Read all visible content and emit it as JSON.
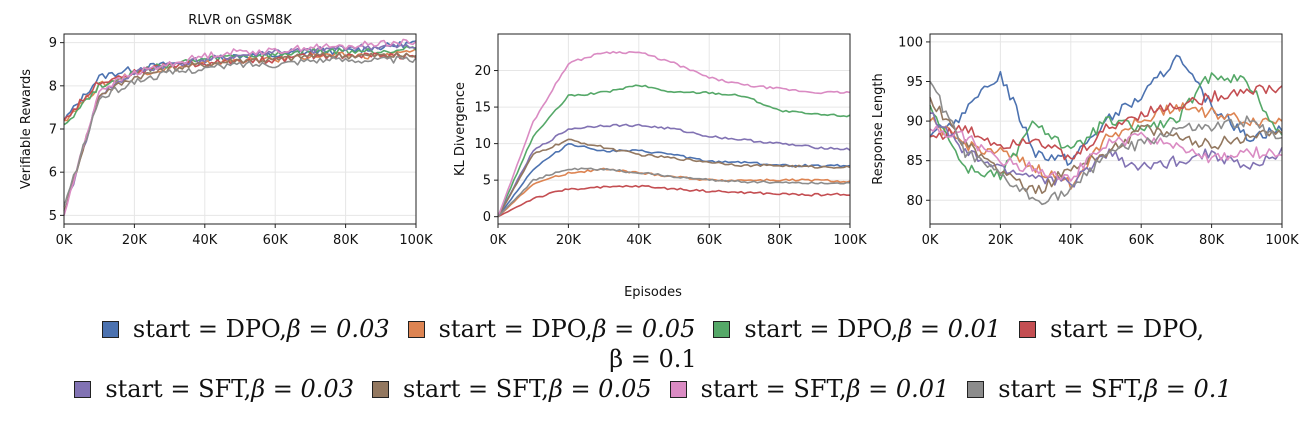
{
  "chart_data": [
    {
      "type": "line",
      "title": "RLVR on GSM8K",
      "xlabel": "",
      "ylabel": "Verifiable Rewards",
      "xlim": [
        0,
        100000
      ],
      "ylim": [
        4.8,
        9.2
      ],
      "xticks": [
        0,
        20000,
        40000,
        60000,
        80000,
        100000
      ],
      "xtick_labels": [
        "0K",
        "20K",
        "40K",
        "60K",
        "80K",
        "100K"
      ],
      "yticks": [
        5,
        6,
        7,
        8,
        9
      ],
      "ytick_labels": [
        "5",
        "6",
        "7",
        "8",
        "9"
      ],
      "grid": true,
      "x": [
        0,
        10000,
        20000,
        30000,
        40000,
        50000,
        60000,
        70000,
        80000,
        90000,
        100000
      ],
      "series": [
        {
          "color": "#4c72b0",
          "values": [
            7.2,
            8.2,
            8.4,
            8.5,
            8.6,
            8.7,
            8.7,
            8.8,
            8.8,
            8.9,
            9.0
          ]
        },
        {
          "color": "#dd8452",
          "values": [
            7.2,
            8.0,
            8.3,
            8.4,
            8.5,
            8.6,
            8.6,
            8.7,
            8.7,
            8.7,
            8.8
          ]
        },
        {
          "color": "#55a868",
          "values": [
            7.1,
            8.0,
            8.3,
            8.5,
            8.6,
            8.7,
            8.7,
            8.8,
            8.8,
            8.8,
            8.9
          ]
        },
        {
          "color": "#c44e52",
          "values": [
            7.2,
            8.1,
            8.3,
            8.5,
            8.5,
            8.6,
            8.6,
            8.7,
            8.7,
            8.7,
            8.7
          ]
        },
        {
          "color": "#8172b3",
          "values": [
            5.0,
            7.8,
            8.3,
            8.5,
            8.6,
            8.7,
            8.8,
            8.8,
            8.9,
            8.9,
            8.9
          ]
        },
        {
          "color": "#937860",
          "values": [
            5.1,
            7.8,
            8.2,
            8.4,
            8.5,
            8.6,
            8.6,
            8.7,
            8.7,
            8.7,
            8.7
          ]
        },
        {
          "color": "#da8bc3",
          "values": [
            5.0,
            7.9,
            8.3,
            8.5,
            8.7,
            8.8,
            8.8,
            8.9,
            8.9,
            9.0,
            9.0
          ]
        },
        {
          "color": "#8c8c8c",
          "values": [
            5.2,
            7.7,
            8.1,
            8.3,
            8.4,
            8.5,
            8.5,
            8.6,
            8.6,
            8.6,
            8.6
          ]
        }
      ]
    },
    {
      "type": "line",
      "title": "",
      "xlabel": "",
      "ylabel": "KL Divergence",
      "xlim": [
        0,
        100000
      ],
      "ylim": [
        -1,
        25
      ],
      "xticks": [
        0,
        20000,
        40000,
        60000,
        80000,
        100000
      ],
      "xtick_labels": [
        "0K",
        "20K",
        "40K",
        "60K",
        "80K",
        "100K"
      ],
      "yticks": [
        0,
        5,
        10,
        15,
        20
      ],
      "ytick_labels": [
        "0",
        "5",
        "10",
        "15",
        "20"
      ],
      "grid": true,
      "x": [
        0,
        10000,
        20000,
        30000,
        40000,
        50000,
        60000,
        70000,
        80000,
        90000,
        100000
      ],
      "series": [
        {
          "color": "#4c72b0",
          "values": [
            0,
            6.5,
            10.0,
            9.0,
            9.0,
            8.5,
            7.5,
            7.5,
            7.0,
            7.0,
            7.0
          ]
        },
        {
          "color": "#dd8452",
          "values": [
            0,
            4.5,
            6.0,
            6.5,
            6.0,
            5.5,
            5.0,
            5.0,
            5.0,
            5.0,
            4.8
          ]
        },
        {
          "color": "#55a868",
          "values": [
            0,
            11.0,
            16.5,
            17.0,
            18.0,
            17.0,
            17.0,
            16.5,
            14.5,
            14.0,
            13.8
          ]
        },
        {
          "color": "#c44e52",
          "values": [
            0,
            2.5,
            3.8,
            4.0,
            4.2,
            3.8,
            3.5,
            3.3,
            3.1,
            3.0,
            3.1
          ]
        },
        {
          "color": "#8172b3",
          "values": [
            0,
            9.0,
            12.0,
            12.5,
            12.5,
            12.0,
            11.0,
            10.5,
            10.0,
            9.5,
            9.2
          ]
        },
        {
          "color": "#937860",
          "values": [
            0,
            8.5,
            10.5,
            9.5,
            8.5,
            8.0,
            7.5,
            7.0,
            7.0,
            6.8,
            6.8
          ]
        },
        {
          "color": "#da8bc3",
          "values": [
            0,
            13.0,
            21.0,
            22.5,
            22.5,
            21.0,
            19.0,
            18.0,
            17.5,
            17.0,
            17.0
          ]
        },
        {
          "color": "#8c8c8c",
          "values": [
            0,
            5.0,
            6.5,
            6.5,
            6.0,
            5.5,
            5.0,
            4.8,
            4.7,
            4.6,
            4.6
          ]
        }
      ]
    },
    {
      "type": "line",
      "title": "",
      "xlabel": "",
      "ylabel": "Response Length",
      "xlim": [
        0,
        100000
      ],
      "ylim": [
        77,
        101
      ],
      "xticks": [
        0,
        20000,
        40000,
        60000,
        80000,
        100000
      ],
      "xtick_labels": [
        "0K",
        "20K",
        "40K",
        "60K",
        "80K",
        "100K"
      ],
      "yticks": [
        80,
        85,
        90,
        95,
        100
      ],
      "ytick_labels": [
        "80",
        "85",
        "90",
        "95",
        "100"
      ],
      "grid": true,
      "x": [
        0,
        10000,
        20000,
        30000,
        40000,
        50000,
        60000,
        70000,
        80000,
        90000,
        100000
      ],
      "series": [
        {
          "color": "#4c72b0",
          "values": [
            88,
            91,
            96,
            86,
            85,
            90,
            93,
            98,
            92,
            88,
            89
          ]
        },
        {
          "color": "#dd8452",
          "values": [
            90,
            87,
            86,
            84,
            82,
            88,
            90,
            92,
            91,
            90,
            90
          ]
        },
        {
          "color": "#55a868",
          "values": [
            92,
            84,
            83,
            90,
            86,
            90,
            89,
            90,
            96,
            95,
            88
          ]
        },
        {
          "color": "#c44e52",
          "values": [
            88,
            89,
            87,
            88,
            85,
            89,
            91,
            92,
            93,
            94,
            94
          ]
        },
        {
          "color": "#8172b3",
          "values": [
            91,
            86,
            84,
            83,
            82,
            86,
            84,
            85,
            86,
            84,
            86
          ]
        },
        {
          "color": "#937860",
          "values": [
            93,
            87,
            84,
            81,
            84,
            86,
            89,
            88,
            87,
            88,
            89
          ]
        },
        {
          "color": "#da8bc3",
          "values": [
            89,
            88,
            85,
            84,
            83,
            87,
            88,
            87,
            85,
            86,
            86
          ]
        },
        {
          "color": "#8c8c8c",
          "values": [
            95,
            86,
            83,
            80,
            81,
            86,
            87,
            89,
            89,
            90,
            88
          ]
        }
      ]
    }
  ],
  "shared_xlabel": "Episodes",
  "legend": {
    "row1": [
      {
        "color": "#4c72b0",
        "text": "start = DPO,",
        "beta": "β = 0.03"
      },
      {
        "color": "#dd8452",
        "text": "start = DPO,",
        "beta": "β = 0.05"
      },
      {
        "color": "#55a868",
        "text": "start = DPO,",
        "beta": "β = 0.01"
      },
      {
        "color": "#c44e52",
        "text": "start = DPO,",
        "beta": ""
      }
    ],
    "row1_wrap": "β = 0.1",
    "row2": [
      {
        "color": "#8172b3",
        "text": "start = SFT,",
        "beta": "β = 0.03"
      },
      {
        "color": "#937860",
        "text": "start = SFT,",
        "beta": "β = 0.05"
      },
      {
        "color": "#da8bc3",
        "text": "start = SFT,",
        "beta": "β = 0.01"
      },
      {
        "color": "#8c8c8c",
        "text": "start = SFT,",
        "beta": "β = 0.1"
      }
    ]
  }
}
